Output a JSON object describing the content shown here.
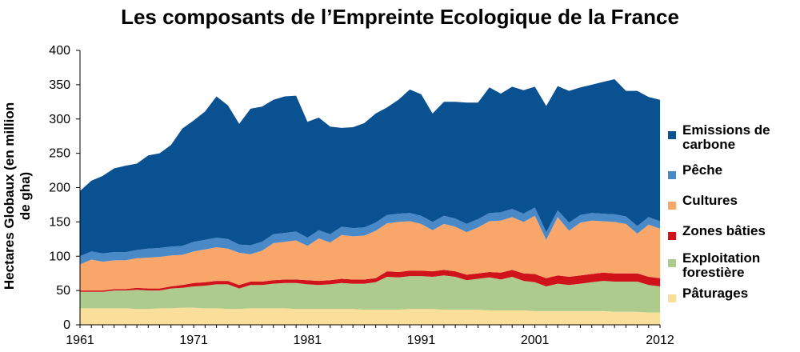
{
  "chart_data": {
    "type": "area",
    "stacked": true,
    "title": "Les composants de l’Empreinte Ecologique de la France",
    "ylabel": "Hectares Globaux (en million de gha)",
    "xlabel": "",
    "xlim": [
      1961,
      2012
    ],
    "ylim": [
      0,
      400
    ],
    "x_ticks": [
      "1961",
      "1971",
      "1981",
      "1991",
      "2001",
      "2012"
    ],
    "y_ticks": [
      "0",
      "50",
      "100",
      "150",
      "200",
      "250",
      "300",
      "350",
      "400"
    ],
    "x": [
      1961,
      1962,
      1963,
      1964,
      1965,
      1966,
      1967,
      1968,
      1969,
      1970,
      1971,
      1972,
      1973,
      1974,
      1975,
      1976,
      1977,
      1978,
      1979,
      1980,
      1981,
      1982,
      1983,
      1984,
      1985,
      1986,
      1987,
      1988,
      1989,
      1990,
      1991,
      1992,
      1993,
      1994,
      1995,
      1996,
      1997,
      1998,
      1999,
      2000,
      2001,
      2002,
      2003,
      2004,
      2005,
      2006,
      2007,
      2008,
      2009,
      2010,
      2011,
      2012
    ],
    "series": [
      {
        "name": "Pâturages",
        "color": "#FADF9A",
        "values": [
          24,
          24,
          24,
          24,
          24,
          23,
          23,
          24,
          24,
          25,
          25,
          24,
          24,
          23,
          23,
          24,
          24,
          24,
          24,
          23,
          23,
          23,
          23,
          23,
          23,
          22,
          22,
          22,
          22,
          23,
          23,
          23,
          22,
          22,
          22,
          22,
          21,
          21,
          21,
          21,
          20,
          20,
          20,
          20,
          20,
          20,
          20,
          19,
          19,
          19,
          18,
          18
        ]
      },
      {
        "name": "Exploitation forestière",
        "color": "#AECB8E",
        "values": [
          24,
          24,
          24,
          26,
          26,
          28,
          27,
          26,
          29,
          29,
          31,
          33,
          35,
          36,
          30,
          34,
          34,
          36,
          37,
          38,
          36,
          35,
          36,
          38,
          37,
          38,
          40,
          48,
          47,
          48,
          48,
          47,
          50,
          48,
          43,
          45,
          48,
          45,
          49,
          43,
          42,
          36,
          40,
          38,
          40,
          42,
          44,
          44,
          44,
          44,
          40,
          38
        ]
      },
      {
        "name": "Zones bâties",
        "color": "#D0121A",
        "values": [
          2,
          2,
          2,
          2,
          2,
          3,
          3,
          3,
          3,
          4,
          5,
          5,
          5,
          5,
          5,
          5,
          5,
          5,
          5,
          5,
          6,
          6,
          6,
          6,
          6,
          6,
          6,
          8,
          8,
          8,
          8,
          8,
          8,
          8,
          8,
          8,
          8,
          10,
          10,
          11,
          12,
          12,
          12,
          12,
          12,
          12,
          12,
          12,
          12,
          12,
          12,
          12
        ]
      },
      {
        "name": "Cultures",
        "color": "#F8A669",
        "values": [
          38,
          45,
          42,
          42,
          42,
          43,
          45,
          46,
          45,
          44,
          46,
          48,
          49,
          47,
          47,
          40,
          45,
          54,
          55,
          57,
          50,
          62,
          55,
          64,
          63,
          64,
          69,
          70,
          73,
          72,
          68,
          60,
          67,
          65,
          62,
          67,
          74,
          76,
          77,
          75,
          85,
          56,
          85,
          67,
          77,
          78,
          75,
          75,
          72,
          58,
          76,
          72
        ]
      },
      {
        "name": "Pêche",
        "color": "#4A89C8",
        "values": [
          12,
          12,
          12,
          12,
          12,
          12,
          13,
          13,
          13,
          13,
          14,
          14,
          14,
          14,
          12,
          13,
          13,
          13,
          13,
          13,
          12,
          12,
          12,
          12,
          12,
          12,
          12,
          12,
          12,
          12,
          12,
          12,
          12,
          12,
          12,
          12,
          12,
          12,
          12,
          12,
          12,
          11,
          10,
          12,
          11,
          11,
          11,
          11,
          11,
          11,
          11,
          11
        ]
      },
      {
        "name": "Emissions de carbone",
        "color": "#0A5192",
        "values": [
          95,
          103,
          113,
          122,
          126,
          126,
          136,
          138,
          148,
          171,
          177,
          187,
          206,
          195,
          176,
          199,
          197,
          196,
          199,
          198,
          169,
          164,
          157,
          144,
          147,
          152,
          159,
          157,
          166,
          180,
          177,
          158,
          166,
          170,
          177,
          170,
          183,
          173,
          178,
          180,
          176,
          184,
          181,
          192,
          186,
          187,
          192,
          197,
          183,
          197,
          175,
          177
        ]
      }
    ],
    "legend_position": "right",
    "grid": false
  },
  "legend_labels": [
    {
      "name": "Emissions de carbone",
      "text": "Emissions de carbone",
      "color": "#0A5192"
    },
    {
      "name": "Pêche",
      "text": "Pêche",
      "color": "#4A89C8"
    },
    {
      "name": "Cultures",
      "text": "Cultures",
      "color": "#F8A669"
    },
    {
      "name": "Zones bâties",
      "text": "Zones bâties",
      "color": "#D0121A"
    },
    {
      "name": "Exploitation forestière",
      "text": "Exploitation forestière",
      "color": "#AECB8E"
    },
    {
      "name": "Pâturages",
      "text": "Pâturages",
      "color": "#FADF9A"
    }
  ]
}
